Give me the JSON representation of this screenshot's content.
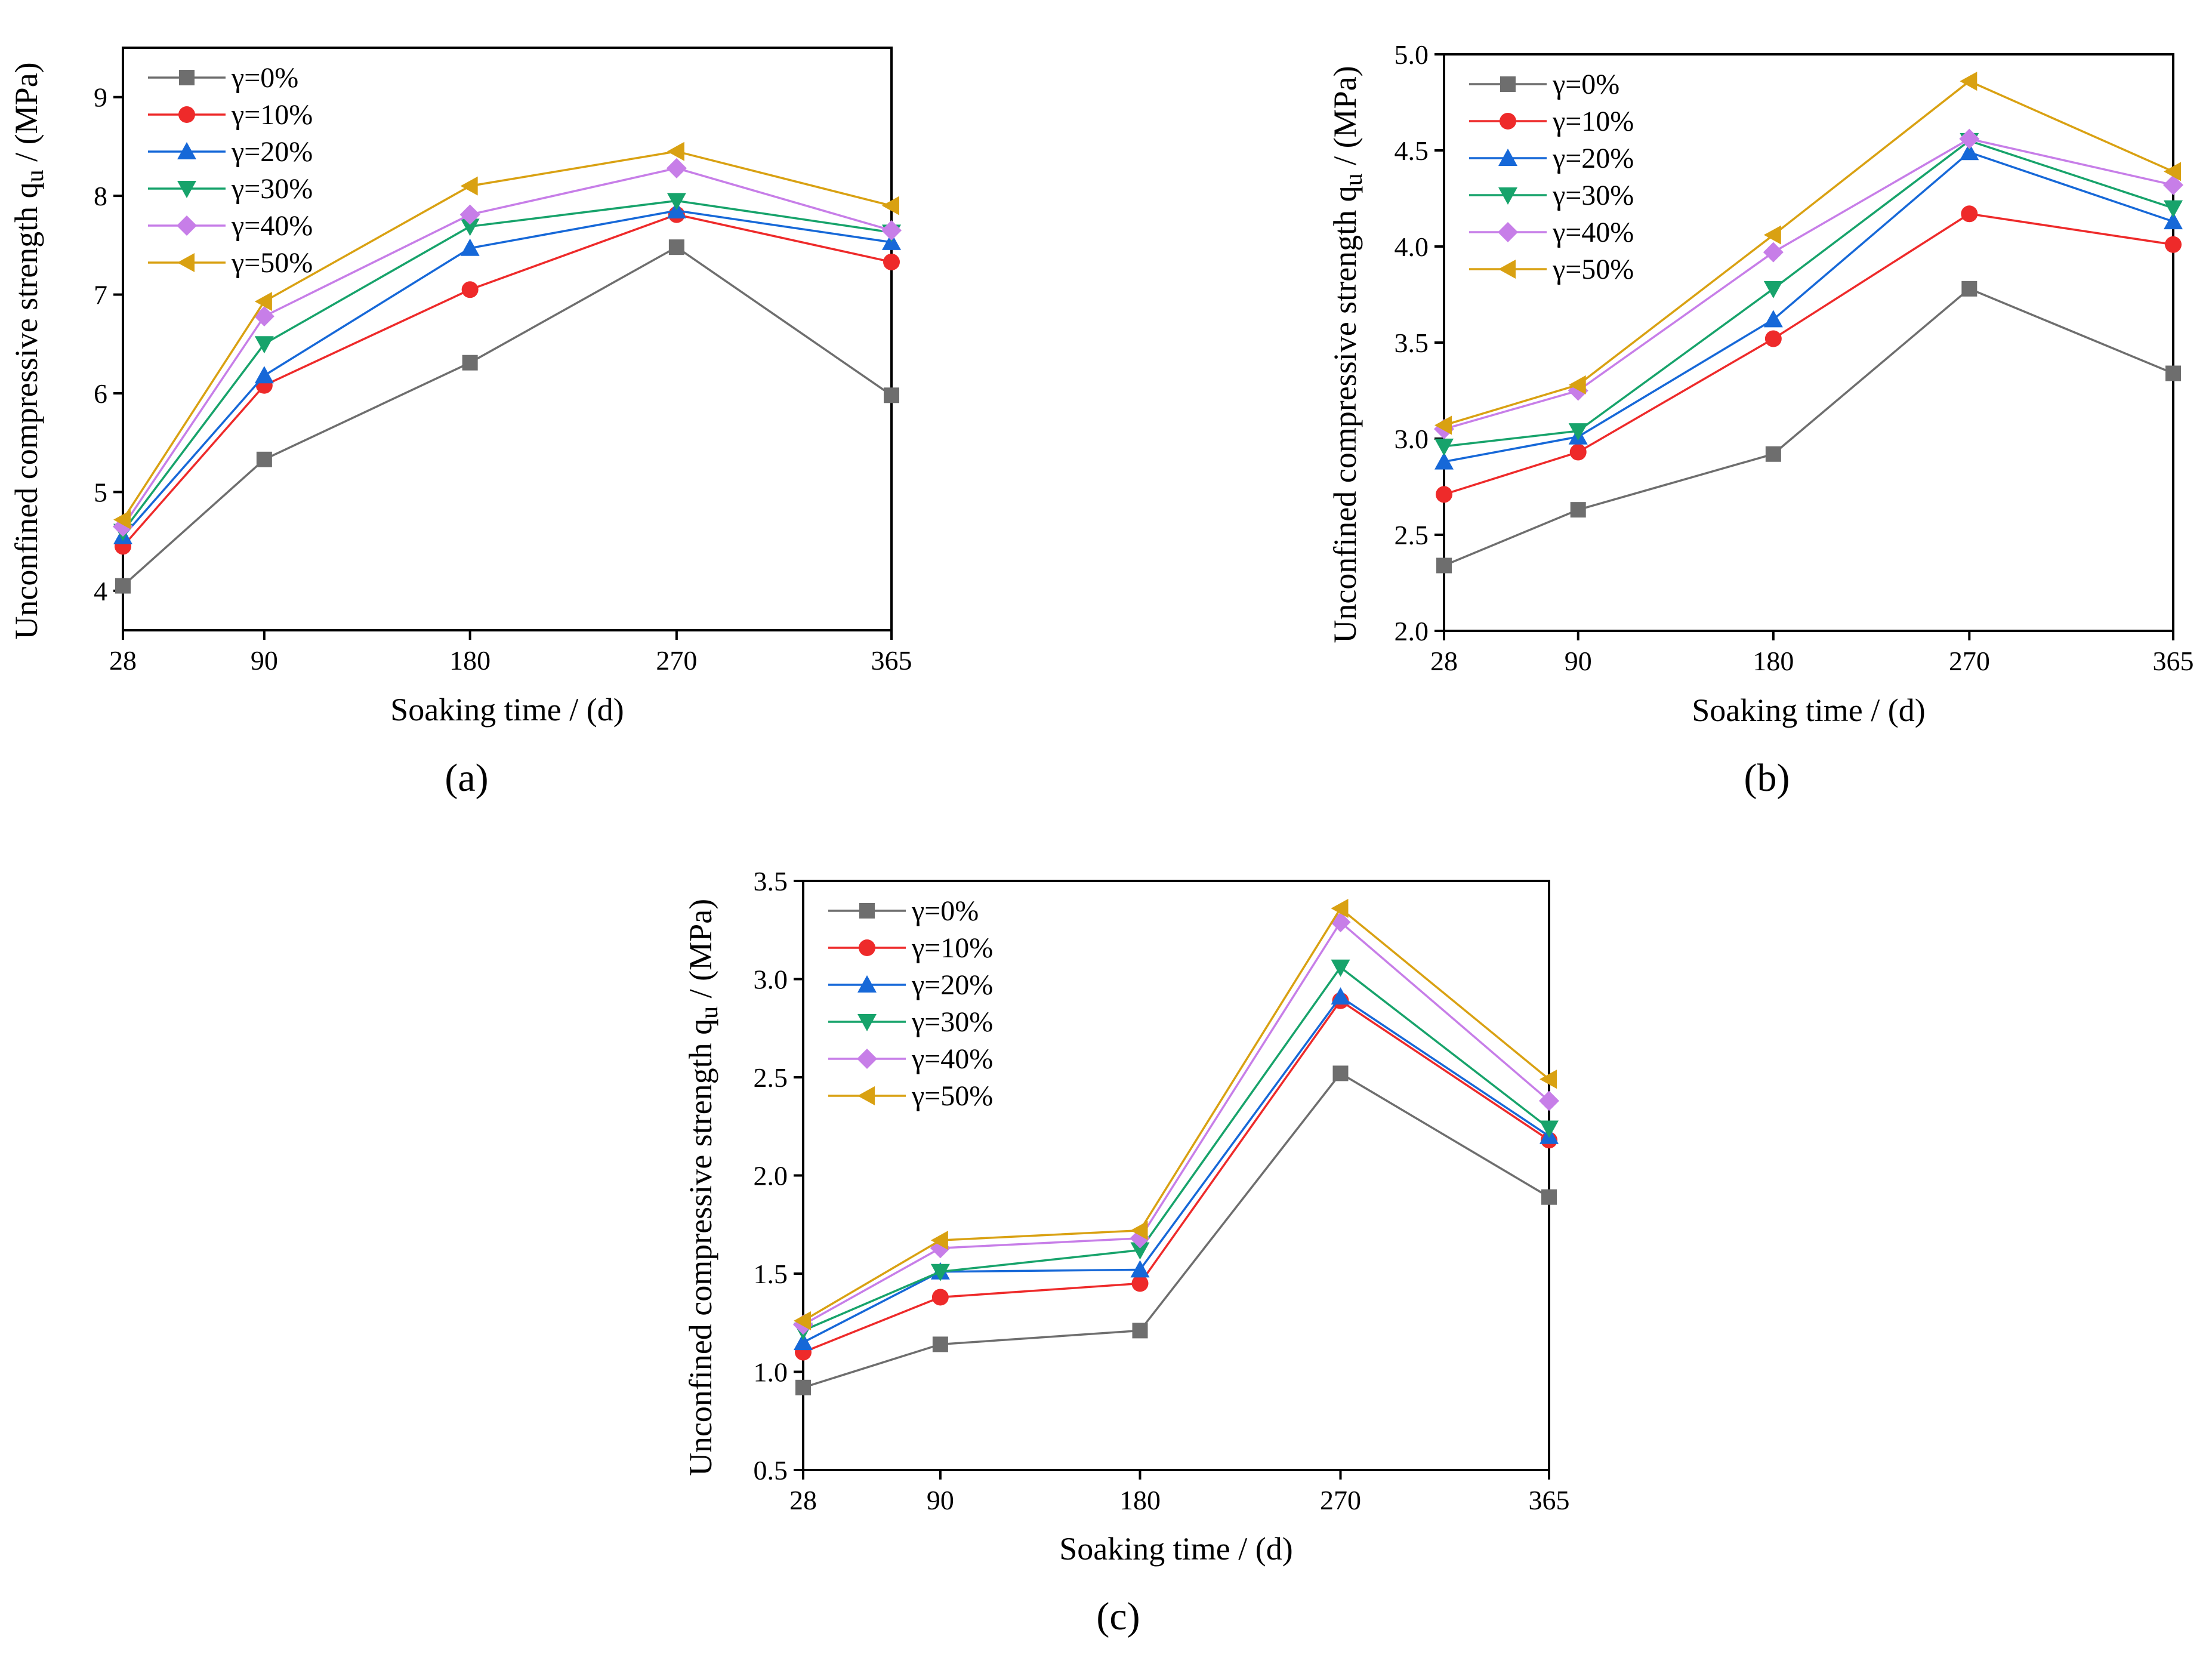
{
  "figure": {
    "panel_labels": [
      "(a)",
      "(b)",
      "(c)"
    ]
  },
  "colors": {
    "γ=0%": "#6e6e6e",
    "γ=10%": "#ee2a2a",
    "γ=20%": "#1668d8",
    "γ=30%": "#17a36b",
    "γ=40%": "#c77ee8",
    "γ=50%": "#d9a112"
  },
  "chart_data": [
    {
      "panel": "(a)",
      "type": "line",
      "xlabel": "Soaking time / (d)",
      "ylabel": "Unconfined compressive strength q",
      "ylabel_sub": "u",
      "ylabel_unit": " / (MPa)",
      "x": [
        28,
        90,
        180,
        270,
        365
      ],
      "x_tick_labels": [
        "28",
        "90",
        "180",
        "270",
        "365"
      ],
      "ylim": [
        3.6,
        9.5
      ],
      "y_ticks": [
        4,
        5,
        6,
        7,
        8,
        9
      ],
      "y_tick_labels": [
        "4",
        "5",
        "6",
        "7",
        "8",
        "9"
      ],
      "legend_position": "top-left",
      "series": [
        {
          "name": "γ=0%",
          "marker": "square",
          "values": [
            4.05,
            5.33,
            6.31,
            7.48,
            5.98
          ]
        },
        {
          "name": "γ=10%",
          "marker": "circle",
          "values": [
            4.45,
            6.08,
            7.05,
            7.81,
            7.33
          ]
        },
        {
          "name": "γ=20%",
          "marker": "triangle-up",
          "values": [
            4.55,
            6.18,
            7.47,
            7.85,
            7.53
          ]
        },
        {
          "name": "γ=30%",
          "marker": "triangle-down",
          "values": [
            4.6,
            6.5,
            7.69,
            7.95,
            7.63
          ]
        },
        {
          "name": "γ=40%",
          "marker": "diamond",
          "values": [
            4.65,
            6.78,
            7.81,
            8.28,
            7.65
          ]
        },
        {
          "name": "γ=50%",
          "marker": "triangle-left",
          "values": [
            4.72,
            6.93,
            8.1,
            8.45,
            7.9
          ]
        }
      ]
    },
    {
      "panel": "(b)",
      "type": "line",
      "xlabel": "Soaking time / (d)",
      "ylabel": "Unconfined compressive strength q",
      "ylabel_sub": "u",
      "ylabel_unit": " / (MPa)",
      "x": [
        28,
        90,
        180,
        270,
        365
      ],
      "x_tick_labels": [
        "28",
        "90",
        "180",
        "270",
        "365"
      ],
      "ylim": [
        2.0,
        5.0
      ],
      "y_ticks": [
        2.0,
        2.5,
        3.0,
        3.5,
        4.0,
        4.5,
        5.0
      ],
      "y_tick_labels": [
        "2.0",
        "2.5",
        "3.0",
        "3.5",
        "4.0",
        "4.5",
        "5.0"
      ],
      "legend_position": "top-left",
      "series": [
        {
          "name": "γ=0%",
          "marker": "square",
          "values": [
            2.34,
            2.63,
            2.92,
            3.78,
            3.34
          ]
        },
        {
          "name": "γ=10%",
          "marker": "circle",
          "values": [
            2.71,
            2.93,
            3.52,
            4.17,
            4.01
          ]
        },
        {
          "name": "γ=20%",
          "marker": "triangle-up",
          "values": [
            2.88,
            3.01,
            3.62,
            4.49,
            4.13
          ]
        },
        {
          "name": "γ=30%",
          "marker": "triangle-down",
          "values": [
            2.96,
            3.04,
            3.78,
            4.55,
            4.2
          ]
        },
        {
          "name": "γ=40%",
          "marker": "diamond",
          "values": [
            3.05,
            3.25,
            3.97,
            4.56,
            4.32
          ]
        },
        {
          "name": "γ=50%",
          "marker": "triangle-left",
          "values": [
            3.07,
            3.28,
            4.06,
            4.86,
            4.39
          ]
        }
      ]
    },
    {
      "panel": "(c)",
      "type": "line",
      "xlabel": "Soaking time / (d)",
      "ylabel": "Unconfined compressive strength q",
      "ylabel_sub": "u",
      "ylabel_unit": " / (MPa)",
      "x": [
        28,
        90,
        180,
        270,
        365
      ],
      "x_tick_labels": [
        "28",
        "90",
        "180",
        "270",
        "365"
      ],
      "ylim": [
        0.5,
        3.5
      ],
      "y_ticks": [
        0.5,
        1.0,
        1.5,
        2.0,
        2.5,
        3.0,
        3.5
      ],
      "y_tick_labels": [
        "0.5",
        "1.0",
        "1.5",
        "2.0",
        "2.5",
        "3.0",
        "3.5"
      ],
      "legend_position": "top-left",
      "series": [
        {
          "name": "γ=0%",
          "marker": "square",
          "values": [
            0.92,
            1.14,
            1.21,
            2.52,
            1.89
          ]
        },
        {
          "name": "γ=10%",
          "marker": "circle",
          "values": [
            1.1,
            1.38,
            1.45,
            2.89,
            2.18
          ]
        },
        {
          "name": "γ=20%",
          "marker": "triangle-up",
          "values": [
            1.15,
            1.51,
            1.52,
            2.91,
            2.2
          ]
        },
        {
          "name": "γ=30%",
          "marker": "triangle-down",
          "values": [
            1.21,
            1.51,
            1.62,
            3.06,
            2.24
          ]
        },
        {
          "name": "γ=40%",
          "marker": "diamond",
          "values": [
            1.24,
            1.63,
            1.68,
            3.29,
            2.38
          ]
        },
        {
          "name": "γ=50%",
          "marker": "triangle-left",
          "values": [
            1.26,
            1.67,
            1.72,
            3.36,
            2.49
          ]
        }
      ]
    }
  ]
}
